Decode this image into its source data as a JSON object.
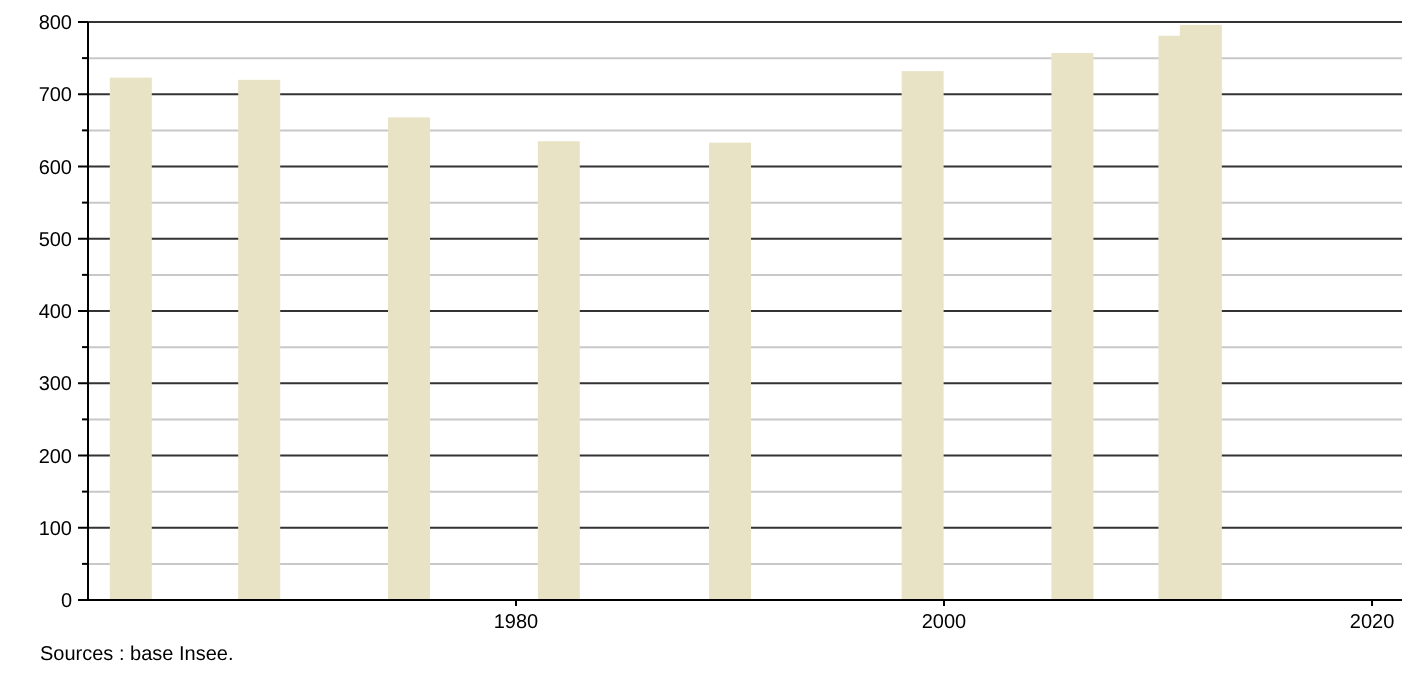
{
  "chart_data": {
    "type": "bar",
    "x": [
      1962,
      1968,
      1975,
      1982,
      1990,
      1999,
      2006,
      2011,
      2012
    ],
    "values": [
      723,
      720,
      668,
      635,
      633,
      732,
      757,
      781,
      796
    ],
    "color": "#e8e3c4",
    "xlim": [
      1960,
      2021.4
    ],
    "xticks": [
      1980,
      2000,
      2020
    ],
    "ylim": [
      0,
      800
    ],
    "yticks": [
      0,
      {
        "value": 50,
        "label": null
      },
      100,
      {
        "value": 150,
        "label": null
      },
      200,
      {
        "value": 250,
        "label": null
      },
      300,
      {
        "value": 350,
        "label": null
      },
      400,
      {
        "value": 450,
        "label": null
      },
      500,
      {
        "value": 550,
        "label": null
      },
      600,
      {
        "value": 650,
        "label": null
      },
      700,
      {
        "value": 750,
        "label": null
      },
      800
    ],
    "grid": "y",
    "annotations": [
      "Sources : base Insee."
    ]
  }
}
